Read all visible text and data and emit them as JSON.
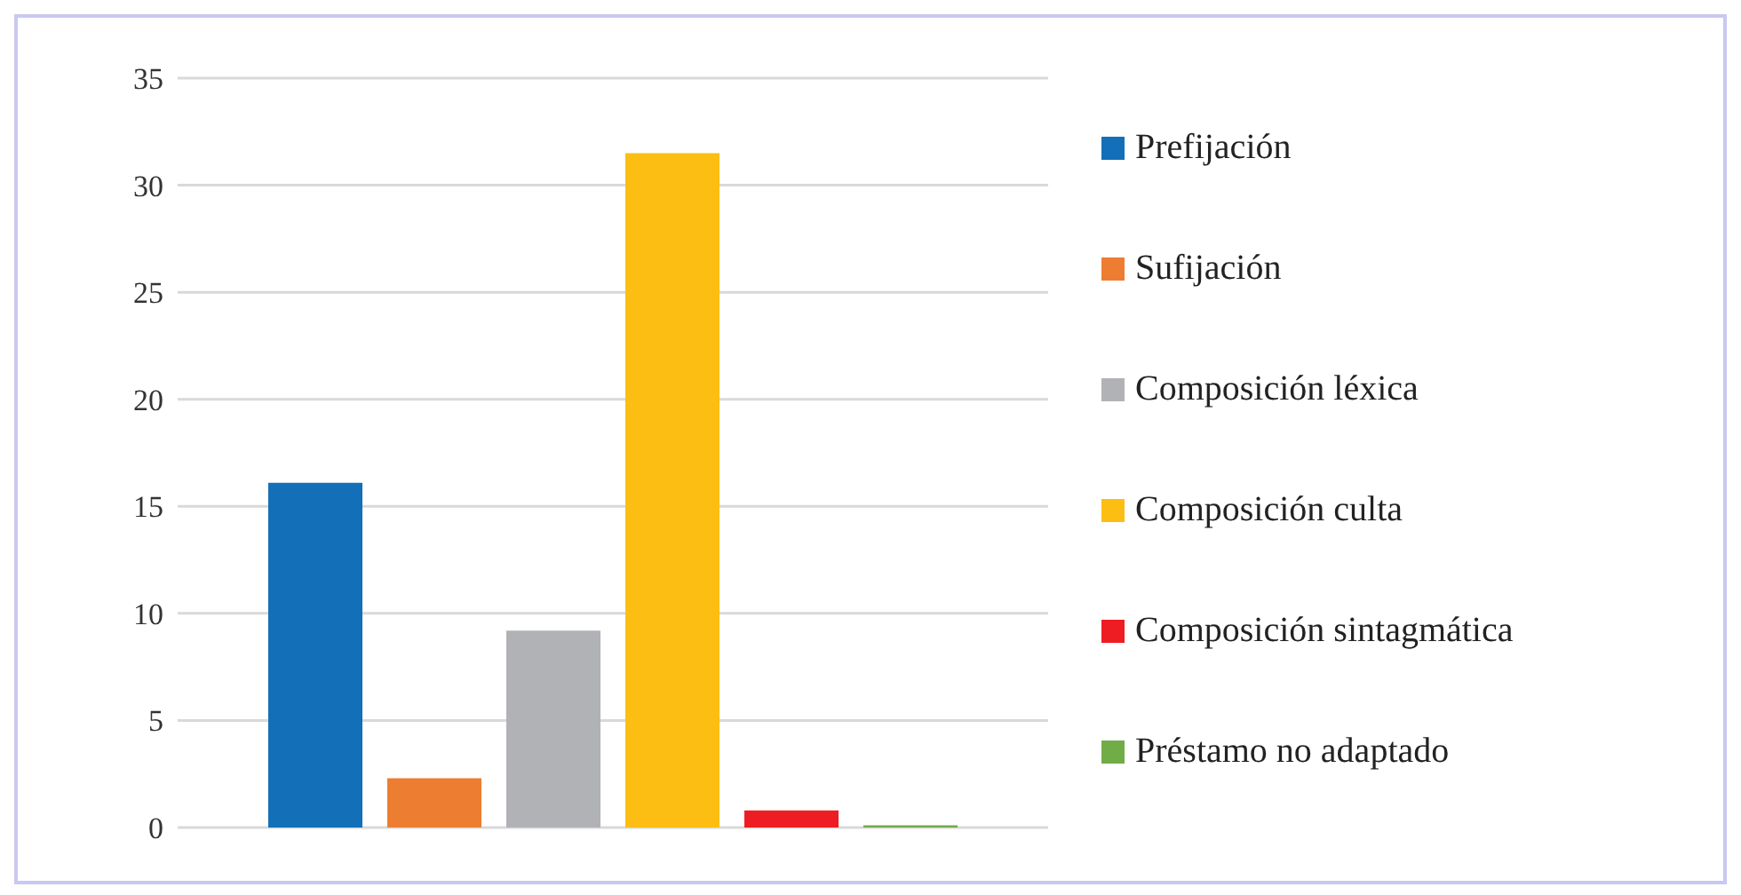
{
  "chart_data": {
    "type": "bar",
    "categories": [
      null
    ],
    "series": [
      {
        "name": "Prefijación",
        "color": "#136fb8",
        "values": [
          16.1
        ]
      },
      {
        "name": "Sufijación",
        "color": "#ed7d31",
        "values": [
          2.3
        ]
      },
      {
        "name": "Composición léxica",
        "color": "#b1b2b5",
        "values": [
          9.2
        ]
      },
      {
        "name": "Composición culta",
        "color": "#fcbe13",
        "values": [
          31.5
        ]
      },
      {
        "name": "Composición sintagmática",
        "color": "#ee1c23",
        "values": [
          0.8
        ]
      },
      {
        "name": "Préstamo no adaptado",
        "color": "#70ad47",
        "values": [
          0.1
        ]
      }
    ],
    "ylim": [
      0,
      35
    ],
    "yticks": [
      0,
      5,
      10,
      15,
      20,
      25,
      30,
      35
    ],
    "grid": "y",
    "legend": "right"
  }
}
